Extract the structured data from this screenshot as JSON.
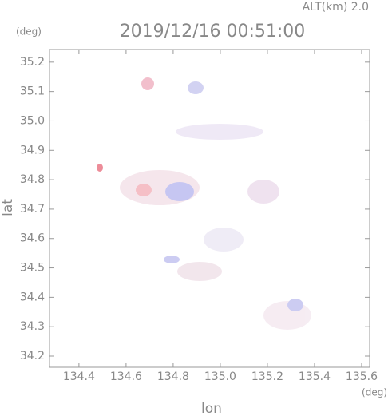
{
  "chart_data": {
    "type": "map",
    "title": "2019/12/16 00:51:00",
    "subtitle": "ALT(km) 2.0",
    "y_unit": "(deg)",
    "x_unit": "(deg)",
    "x_label": "lon",
    "y_label": "lat",
    "xlim": [
      134.275,
      135.634
    ],
    "ylim": [
      34.162,
      35.243
    ],
    "xticks": [
      134.4,
      134.6,
      134.8,
      {
        "value": 135,
        "label": "135.0"
      },
      135.2,
      135.4,
      135.6
    ],
    "yticks": [
      34.2,
      34.3,
      34.4,
      34.5,
      34.6,
      34.7,
      34.8,
      34.9,
      {
        "value": 35,
        "label": "35.0"
      },
      35.1,
      35.2
    ]
  }
}
